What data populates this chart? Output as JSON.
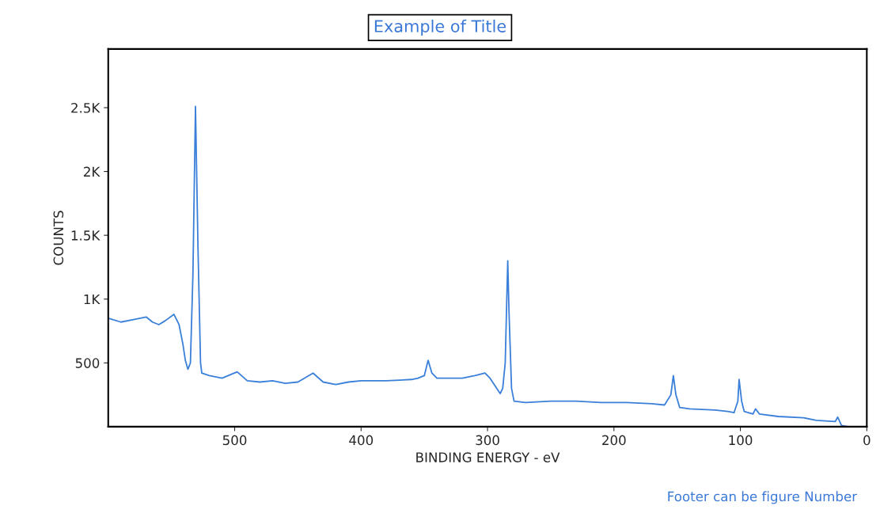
{
  "chart_data": {
    "type": "line",
    "title": "Example of Title",
    "xlabel": "BINDING ENERGY - eV",
    "ylabel": "COUNTS",
    "annotations": [
      "Footer can be figure Number"
    ],
    "x": [
      600,
      590,
      580,
      570,
      565,
      560,
      555,
      548,
      544,
      541,
      539,
      537,
      535,
      533,
      531,
      529,
      527,
      526,
      520,
      510,
      498,
      490,
      480,
      470,
      460,
      450,
      438,
      430,
      420,
      410,
      400,
      380,
      360,
      355,
      350,
      347,
      344,
      340,
      320,
      310,
      302,
      298,
      290,
      288,
      286,
      284,
      283,
      281,
      279,
      270,
      250,
      230,
      210,
      190,
      170,
      160,
      155,
      153,
      151,
      148,
      140,
      120,
      110,
      105,
      102,
      101,
      99,
      97,
      90,
      88,
      85,
      70,
      50,
      40,
      25,
      23,
      20,
      15,
      0
    ],
    "series": [
      {
        "color": "#3a7fd9",
        "values": [
          850,
          820,
          840,
          860,
          820,
          800,
          830,
          880,
          800,
          650,
          520,
          450,
          500,
          1200,
          2510,
          1400,
          500,
          420,
          400,
          380,
          430,
          360,
          350,
          360,
          340,
          350,
          420,
          350,
          330,
          350,
          360,
          360,
          370,
          380,
          400,
          520,
          420,
          380,
          380,
          400,
          420,
          380,
          260,
          300,
          500,
          1300,
          900,
          300,
          200,
          190,
          200,
          200,
          190,
          190,
          180,
          170,
          250,
          400,
          250,
          150,
          140,
          130,
          120,
          110,
          200,
          370,
          200,
          120,
          100,
          140,
          100,
          80,
          70,
          50,
          40,
          75,
          10,
          0,
          0
        ]
      }
    ],
    "xlim": [
      600,
      0
    ],
    "xticks": [
      500,
      400,
      300,
      200,
      100,
      0
    ],
    "ylim": [
      0,
      2960
    ],
    "yticks": [
      {
        "value": 500,
        "label": "500"
      },
      {
        "value": 1000,
        "label": "1K"
      },
      {
        "value": 1500,
        "label": "1.5K"
      },
      {
        "value": 2000,
        "label": "2K"
      },
      {
        "value": 2500,
        "label": "2.5K"
      }
    ],
    "grid": false,
    "marker": "none",
    "line_style": "solid"
  }
}
